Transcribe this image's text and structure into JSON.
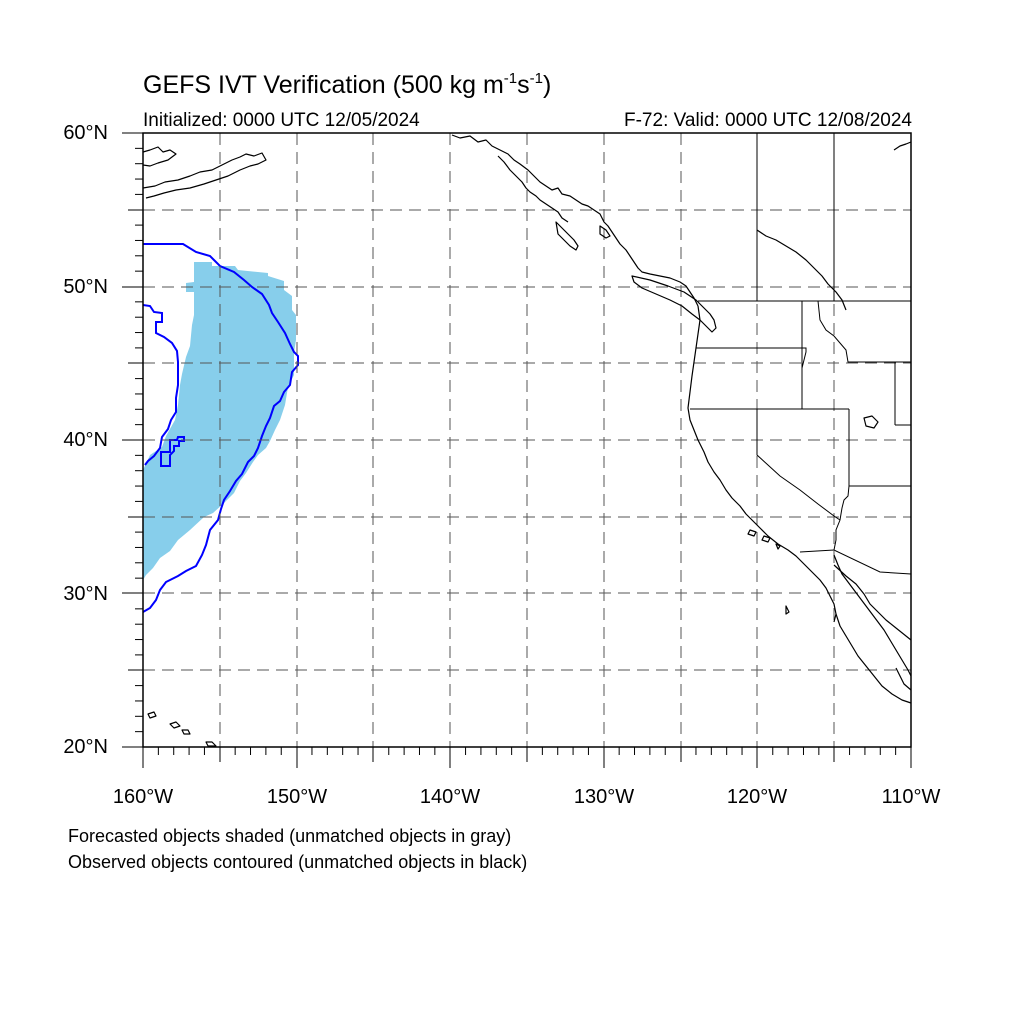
{
  "title": {
    "main": "GEFS IVT Verification (500 kg m",
    "exp1": "-1",
    "mid": "s",
    "exp2": "-1",
    "close": ")"
  },
  "init_label": "Initialized: 0000 UTC 12/05/2024",
  "valid_label": "F-72: Valid: 0000 UTC 12/08/2024",
  "lat_labels": [
    "60°N",
    "50°N",
    "40°N",
    "30°N",
    "20°N"
  ],
  "lon_labels": [
    "160°W",
    "150°W",
    "140°W",
    "130°W",
    "120°W",
    "110°W"
  ],
  "footnotes": [
    "Forecasted objects shaded (unmatched objects in gray)",
    "Observed objects contoured (unmatched objects in black)"
  ],
  "colors": {
    "forecast_fill": "#87ceeb",
    "observed_contour": "#0000ff",
    "coast": "#000000",
    "grid": "#555555"
  },
  "map_extent": {
    "lon": [
      -160,
      -110
    ],
    "lat": [
      20,
      60
    ]
  }
}
